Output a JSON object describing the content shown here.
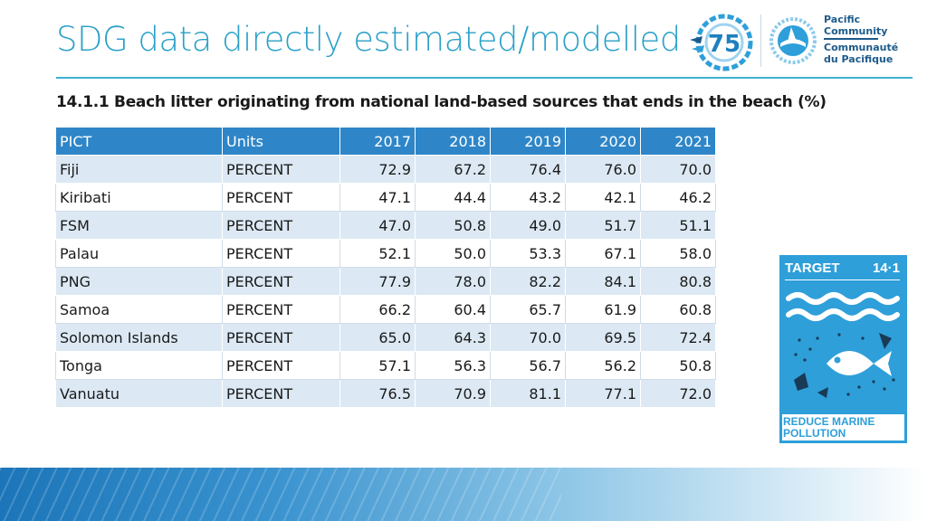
{
  "slide": {
    "title": "SDG data directly estimated/modelled",
    "subtitle": "14.1.1 Beach litter originating from national land-based sources that ends in the beach (%)"
  },
  "table": {
    "headers": [
      "PICT",
      "Units",
      "2017",
      "2018",
      "2019",
      "2020",
      "2021"
    ],
    "rows": [
      [
        "Fiji",
        "PERCENT",
        "72.9",
        "67.2",
        "76.4",
        "76.0",
        "70.0"
      ],
      [
        "Kiribati",
        "PERCENT",
        "47.1",
        "44.4",
        "43.2",
        "42.1",
        "46.2"
      ],
      [
        "FSM",
        "PERCENT",
        "47.0",
        "50.8",
        "49.0",
        "51.7",
        "51.1"
      ],
      [
        "Palau",
        "PERCENT",
        "52.1",
        "50.0",
        "53.3",
        "67.1",
        "58.0"
      ],
      [
        "PNG",
        "PERCENT",
        "77.9",
        "78.0",
        "82.2",
        "84.1",
        "80.8"
      ],
      [
        "Samoa",
        "PERCENT",
        "66.2",
        "60.4",
        "65.7",
        "61.9",
        "60.8"
      ],
      [
        "Solomon Islands",
        "PERCENT",
        "65.0",
        "64.3",
        "70.0",
        "69.5",
        "72.4"
      ],
      [
        "Tonga",
        "PERCENT",
        "57.1",
        "56.3",
        "56.7",
        "56.2",
        "50.8"
      ],
      [
        "Vanuatu",
        "PERCENT",
        "76.5",
        "70.9",
        "81.1",
        "77.1",
        "72.0"
      ]
    ]
  },
  "logos": {
    "org_name": [
      "Pacific",
      "Community"
    ],
    "org_name_fr": [
      "Communauté",
      "du Pacifique"
    ],
    "anniversary": "75"
  },
  "sdg_tile": {
    "target_label": "TARGET",
    "target_number": "14·1",
    "caption": [
      "REDUCE MARINE",
      "POLLUTION"
    ],
    "color": "#2e9fd9"
  },
  "colors": {
    "title": "#2aa0c8",
    "table_header": "#2e86c8",
    "table_stripe": "#dce9f4"
  }
}
